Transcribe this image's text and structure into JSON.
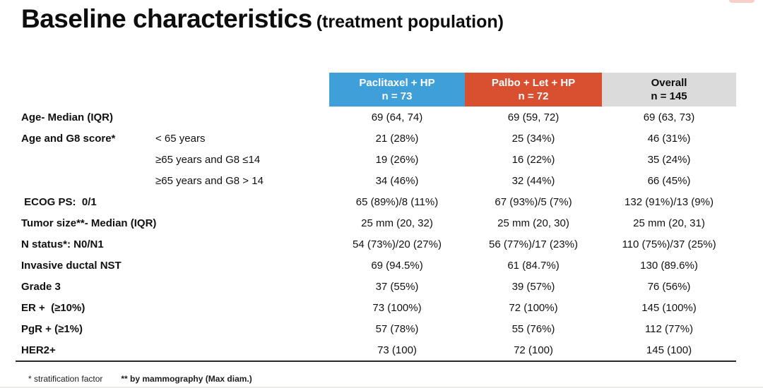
{
  "title": {
    "main": "Baseline characteristics",
    "suffix": "(treatment population)"
  },
  "colors": {
    "paclitaxel_header": "#3fa0d9",
    "palbo_header": "#d8502f",
    "overall_header": "#dbdbdb",
    "header_text_light": "#ffffff",
    "header_text_dark": "#0d0d0d",
    "rule": "#2a2a2a"
  },
  "table": {
    "columns": [
      {
        "title": "Paclitaxel + HP",
        "n": "n = 73",
        "color": "#3fa0d9",
        "text_color": "#ffffff"
      },
      {
        "title": "Palbo + Let + HP",
        "n": "n = 72",
        "color": "#d8502f",
        "text_color": "#ffffff"
      },
      {
        "title": "Overall",
        "n": "n = 145",
        "color": "#dbdbdb",
        "text_color": "#0d0d0d"
      }
    ],
    "rows": [
      {
        "label": "Age- Median (IQR)",
        "sublabel": "",
        "values": [
          "69 (64, 74)",
          "69 (59, 72)",
          "69 (63, 73)"
        ]
      },
      {
        "label": "Age and G8 score*",
        "sublabel": "< 65 years",
        "values": [
          "21 (28%)",
          "25 (34%)",
          "46 (31%)"
        ]
      },
      {
        "label": "",
        "sublabel": "≥65 years and G8 ≤14",
        "values": [
          "19 (26%)",
          "16 (22%)",
          "35 (24%)"
        ]
      },
      {
        "label": "",
        "sublabel": "≥65 years and G8 > 14",
        "values": [
          "34 (46%)",
          "32 (44%)",
          "66 (45%)"
        ]
      },
      {
        "label": " ECOG PS:  0/1",
        "sublabel": "",
        "values": [
          "65 (89%)/8 (11%)",
          "67 (93%)/5 (7%)",
          "132 (91%)/13 (9%)"
        ]
      },
      {
        "label": "Tumor size**- Median (IQR)",
        "sublabel": "",
        "values": [
          "25 mm (20, 32)",
          "25 mm (20, 30)",
          "25 mm (20, 31)"
        ]
      },
      {
        "label": "N status*: N0/N1",
        "sublabel": "",
        "values": [
          "54 (73%)/20 (27%)",
          "56 (77%)/17 (23%)",
          "110 (75%)/37 (25%)"
        ]
      },
      {
        "label": "Invasive ductal NST",
        "sublabel": "",
        "values": [
          "69 (94.5%)",
          "61 (84.7%)",
          "130 (89.6%)"
        ]
      },
      {
        "label": "Grade 3",
        "sublabel": "",
        "values": [
          "37 (55%)",
          "39 (57%)",
          "76 (56%)"
        ]
      },
      {
        "label": "ER +  (≥10%)",
        "sublabel": "",
        "values": [
          "73 (100%)",
          "72 (100%)",
          "145 (100%)"
        ]
      },
      {
        "label": "PgR + (≥1%)",
        "sublabel": "",
        "values": [
          "57 (78%)",
          "55 (76%)",
          "112 (77%)"
        ]
      },
      {
        "label": "HER2+",
        "sublabel": "",
        "values": [
          "73 (100)",
          "72 (100)",
          "145 (100)"
        ]
      }
    ]
  },
  "footnotes": {
    "first": "* stratification factor",
    "second": "** by mammography (Max diam.)"
  }
}
